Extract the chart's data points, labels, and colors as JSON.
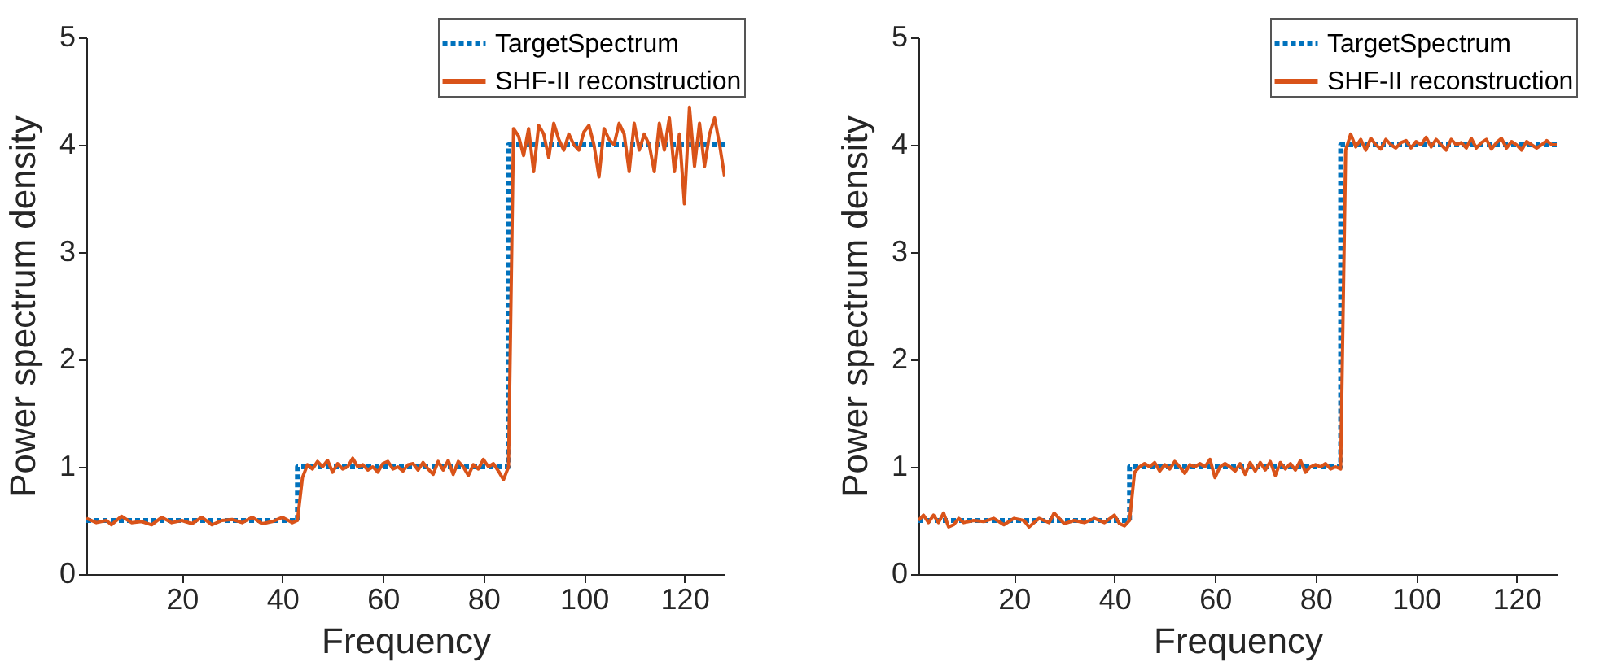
{
  "chart_data": [
    {
      "type": "line",
      "xlabel": "Frequency",
      "ylabel": "Power spectrum density",
      "xlim": [
        1,
        128
      ],
      "ylim": [
        0,
        5
      ],
      "xticks": [
        20,
        40,
        60,
        80,
        100,
        120
      ],
      "yticks": [
        0,
        1,
        2,
        3,
        4,
        5
      ],
      "grid": false,
      "legend": "top right",
      "series": [
        {
          "name": "TargetSpectrum",
          "color": "#0072bd",
          "line_style": "dotted",
          "x": [
            1,
            43,
            43,
            85,
            85,
            128
          ],
          "values": [
            0.5,
            0.5,
            1,
            1,
            4,
            4
          ]
        },
        {
          "name": "SHF-II reconstruction",
          "color": "#d95319",
          "line_style": "solid",
          "x": [
            1,
            3,
            5,
            6,
            8,
            10,
            12,
            14,
            16,
            18,
            20,
            22,
            24,
            26,
            28,
            30,
            32,
            34,
            36,
            38,
            40,
            42,
            43,
            44,
            45,
            46,
            47,
            48,
            49,
            50,
            51,
            52,
            53,
            54,
            55,
            56,
            57,
            58,
            59,
            60,
            61,
            62,
            63,
            64,
            65,
            66,
            67,
            68,
            69,
            70,
            71,
            72,
            73,
            74,
            75,
            76,
            77,
            78,
            79,
            80,
            81,
            82,
            83,
            84,
            85,
            86,
            87,
            88,
            89,
            90,
            91,
            92,
            93,
            94,
            95,
            96,
            97,
            98,
            99,
            100,
            101,
            102,
            103,
            104,
            105,
            106,
            107,
            108,
            109,
            110,
            111,
            112,
            113,
            114,
            115,
            116,
            117,
            118,
            119,
            120,
            121,
            122,
            123,
            124,
            125,
            126,
            127,
            128
          ],
          "values": [
            0.52,
            0.48,
            0.5,
            0.46,
            0.54,
            0.48,
            0.49,
            0.46,
            0.53,
            0.48,
            0.5,
            0.47,
            0.53,
            0.46,
            0.5,
            0.51,
            0.48,
            0.53,
            0.47,
            0.49,
            0.53,
            0.48,
            0.5,
            0.9,
            1.02,
            0.98,
            1.05,
            1.0,
            1.06,
            0.95,
            1.03,
            0.98,
            1.0,
            1.08,
            1.0,
            1.02,
            0.97,
            1.0,
            0.95,
            1.03,
            1.05,
            0.98,
            1.0,
            0.96,
            1.02,
            1.03,
            0.97,
            1.04,
            0.98,
            0.93,
            1.05,
            0.97,
            1.06,
            0.93,
            1.05,
            1.0,
            0.92,
            1.02,
            0.98,
            1.07,
            1.0,
            1.03,
            0.96,
            0.88,
            1.0,
            4.15,
            4.08,
            3.9,
            4.15,
            3.75,
            4.18,
            4.1,
            3.88,
            4.2,
            4.05,
            3.95,
            4.1,
            4.0,
            3.95,
            4.12,
            4.18,
            4.0,
            3.7,
            4.15,
            4.05,
            4.0,
            4.2,
            4.1,
            3.75,
            4.2,
            3.95,
            4.1,
            4.0,
            3.75,
            4.2,
            3.95,
            4.25,
            3.75,
            4.1,
            3.45,
            4.35,
            3.8,
            4.2,
            3.8,
            4.1,
            4.25,
            4.0,
            3.7
          ]
        }
      ]
    },
    {
      "type": "line",
      "xlabel": "Frequency",
      "ylabel": "Power spectrum density",
      "xlim": [
        1,
        128
      ],
      "ylim": [
        0,
        5
      ],
      "xticks": [
        20,
        40,
        60,
        80,
        100,
        120
      ],
      "yticks": [
        0,
        1,
        2,
        3,
        4,
        5
      ],
      "grid": false,
      "legend": "top right",
      "series": [
        {
          "name": "TargetSpectrum",
          "color": "#0072bd",
          "line_style": "dotted",
          "x": [
            1,
            43,
            43,
            85,
            85,
            128
          ],
          "values": [
            0.5,
            0.5,
            1,
            1,
            4,
            4
          ]
        },
        {
          "name": "SHF-II reconstruction",
          "color": "#d95319",
          "line_style": "solid",
          "x": [
            1,
            2,
            3,
            4,
            5,
            6,
            7,
            8,
            9,
            10,
            12,
            14,
            16,
            18,
            20,
            22,
            23,
            25,
            27,
            28,
            30,
            32,
            34,
            36,
            38,
            40,
            41,
            42,
            43,
            44,
            45,
            46,
            47,
            48,
            49,
            50,
            51,
            52,
            53,
            54,
            55,
            56,
            57,
            58,
            59,
            60,
            61,
            62,
            63,
            64,
            65,
            66,
            67,
            68,
            69,
            70,
            71,
            72,
            73,
            74,
            75,
            76,
            77,
            78,
            79,
            80,
            81,
            82,
            83,
            84,
            85,
            86,
            87,
            88,
            89,
            90,
            91,
            92,
            93,
            94,
            95,
            96,
            97,
            98,
            99,
            100,
            101,
            102,
            103,
            104,
            105,
            106,
            107,
            108,
            109,
            110,
            111,
            112,
            113,
            114,
            115,
            116,
            117,
            118,
            119,
            120,
            121,
            122,
            123,
            124,
            125,
            126,
            127,
            128
          ],
          "values": [
            0.5,
            0.55,
            0.48,
            0.55,
            0.48,
            0.57,
            0.44,
            0.46,
            0.52,
            0.48,
            0.5,
            0.49,
            0.52,
            0.46,
            0.52,
            0.5,
            0.44,
            0.52,
            0.48,
            0.57,
            0.47,
            0.5,
            0.48,
            0.52,
            0.48,
            0.55,
            0.47,
            0.45,
            0.5,
            0.95,
            1.0,
            1.03,
            1.0,
            1.04,
            0.96,
            1.02,
            0.98,
            1.05,
            1.0,
            0.94,
            1.02,
            1.0,
            1.03,
            1.0,
            1.07,
            0.9,
            1.0,
            1.03,
            1.0,
            0.96,
            1.03,
            0.93,
            1.04,
            0.96,
            1.04,
            0.97,
            1.05,
            0.92,
            1.04,
            0.98,
            1.03,
            0.97,
            1.06,
            0.95,
            1.0,
            1.02,
            1.0,
            1.03,
            0.98,
            1.0,
            0.98,
            3.95,
            4.1,
            3.98,
            4.05,
            3.95,
            4.06,
            4.0,
            3.96,
            4.05,
            4.0,
            3.97,
            4.02,
            4.04,
            3.97,
            4.03,
            4.0,
            4.07,
            3.98,
            4.05,
            4.0,
            3.95,
            4.05,
            4.0,
            4.02,
            3.97,
            4.06,
            3.97,
            4.02,
            4.05,
            3.96,
            4.02,
            4.06,
            3.97,
            4.03,
            4.0,
            3.95,
            4.03,
            4.0,
            3.97,
            4.0,
            4.04,
            4.0,
            4.0
          ]
        }
      ]
    }
  ]
}
